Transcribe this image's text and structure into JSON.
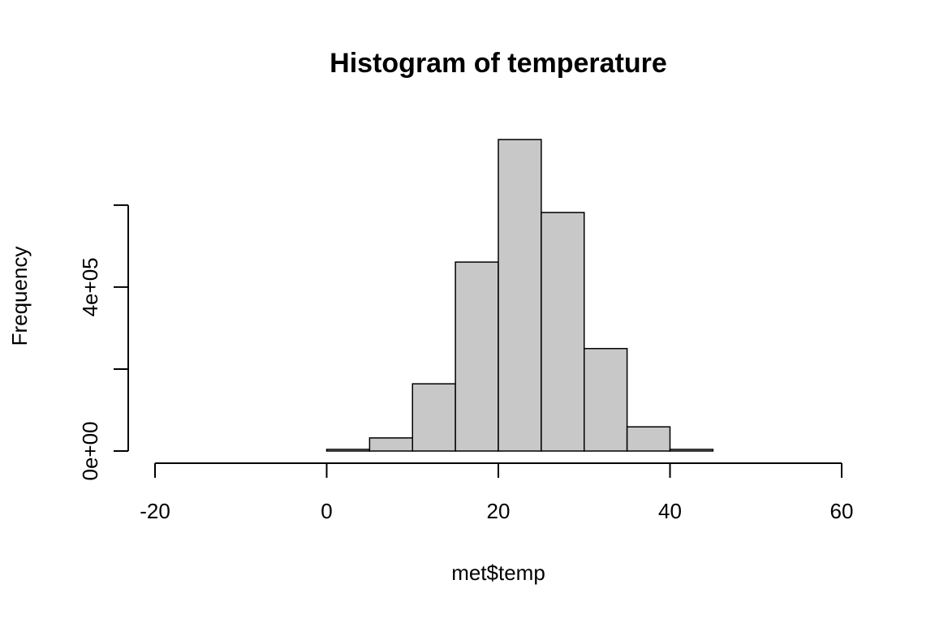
{
  "chart_data": {
    "type": "histogram",
    "title": "Histogram of temperature",
    "x_label": "met$temp",
    "y_label": "Frequency",
    "bins": [
      -20,
      -15,
      -10,
      -5,
      0,
      5,
      10,
      15,
      20,
      25,
      30,
      35,
      40,
      45,
      50,
      55,
      60
    ],
    "values": [
      0,
      0,
      0,
      0,
      4000,
      32000,
      164000,
      461000,
      760000,
      582000,
      250000,
      59000,
      4000,
      0,
      0,
      0
    ],
    "color": "#c8c8c8",
    "xlim": [
      -20,
      60
    ],
    "xticks": [
      -20,
      0,
      20,
      40,
      60
    ],
    "ylim": [
      0,
      760000
    ],
    "yticks": [
      {
        "value": 0,
        "label": "0e+00"
      },
      {
        "value": 200000,
        "label": null
      },
      {
        "value": 400000,
        "label": "4e+05"
      },
      {
        "value": 600000,
        "label": null
      }
    ]
  }
}
